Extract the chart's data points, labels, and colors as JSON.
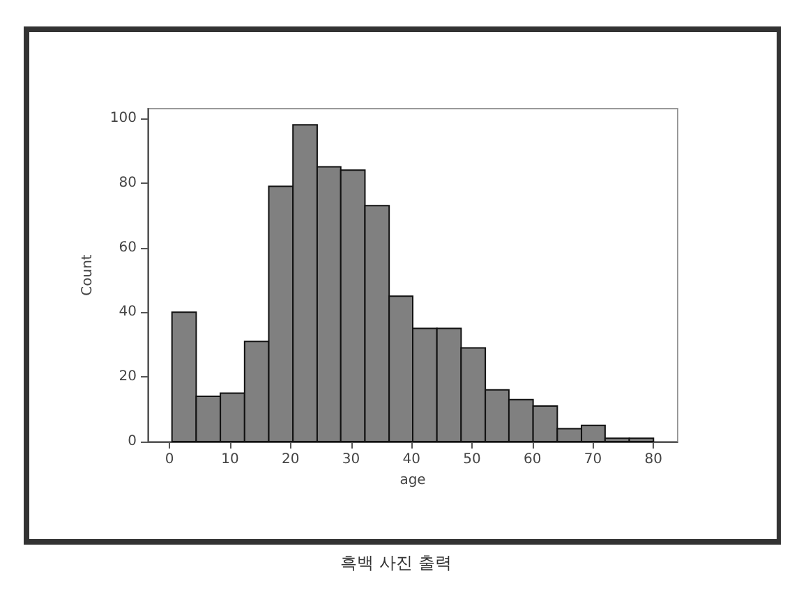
{
  "chart_data": {
    "type": "histogram",
    "xlabel": "age",
    "ylabel": "Count",
    "bins": [
      0.4,
      4.4,
      8.4,
      12.4,
      16.4,
      20.4,
      24.4,
      28.3,
      32.3,
      36.3,
      40.2,
      44.2,
      48.2,
      52.2,
      56.1,
      60.1,
      64.1,
      68.1,
      72.0,
      76.0,
      80.0
    ],
    "values": [
      40,
      14,
      15,
      31,
      79,
      98,
      85,
      84,
      73,
      45,
      35,
      35,
      29,
      16,
      13,
      11,
      4,
      5,
      1,
      1
    ],
    "color": "#808080",
    "xlim": [
      -3.6,
      84
    ],
    "xticks": [
      0,
      10,
      20,
      30,
      40,
      50,
      60,
      70,
      80
    ],
    "ylim": [
      0,
      103
    ],
    "yticks": [
      0,
      20,
      40,
      60,
      80,
      100
    ],
    "grid": false,
    "annotations": [
      "흑백 사진 출력"
    ]
  }
}
